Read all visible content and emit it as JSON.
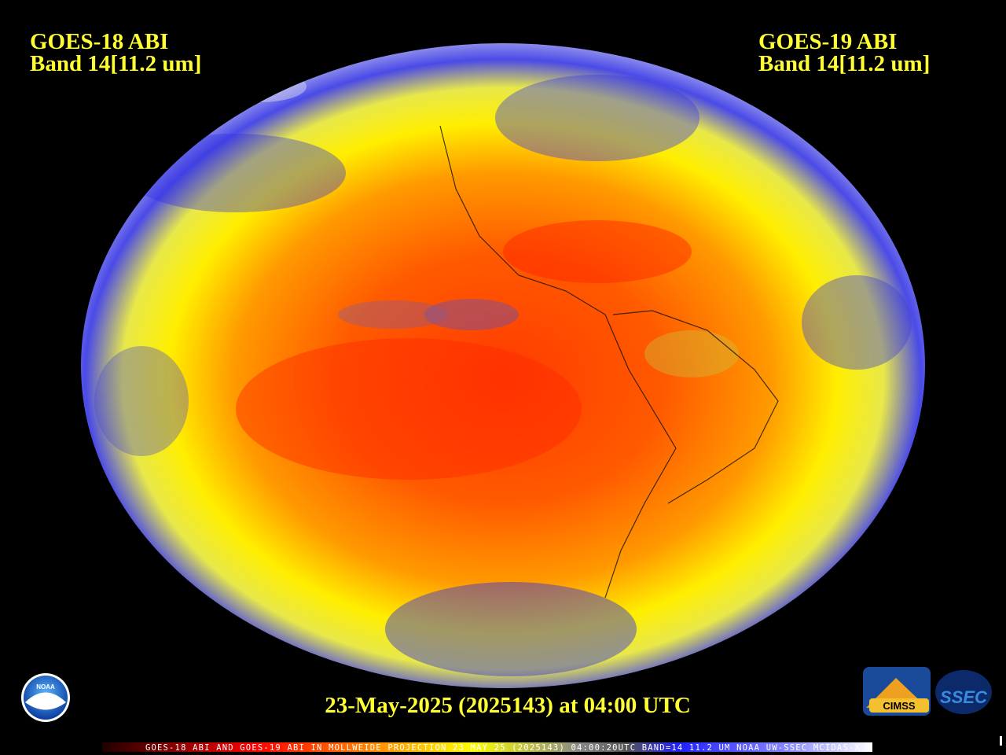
{
  "header": {
    "left": {
      "line1": "GOES-18 ABI",
      "line2": "Band 14[11.2 um]"
    },
    "right": {
      "line1": "GOES-19 ABI",
      "line2": "Band 14[11.2 um]"
    }
  },
  "timestamp": "23-May-2025 (2025143) at 04:00 UTC",
  "footer": "GOES-18 ABI AND GOES-19 ABI IN MOLLWEIDE PROJECTION 23 MAY 25 (2025143) 04:00:20UTC BAND=14 11.2 UM NOAA UW-SSEC MCIDAS-X",
  "logos": {
    "noaa": "NOAA",
    "cimss": "CIMSS",
    "ssec": "SSEC"
  }
}
